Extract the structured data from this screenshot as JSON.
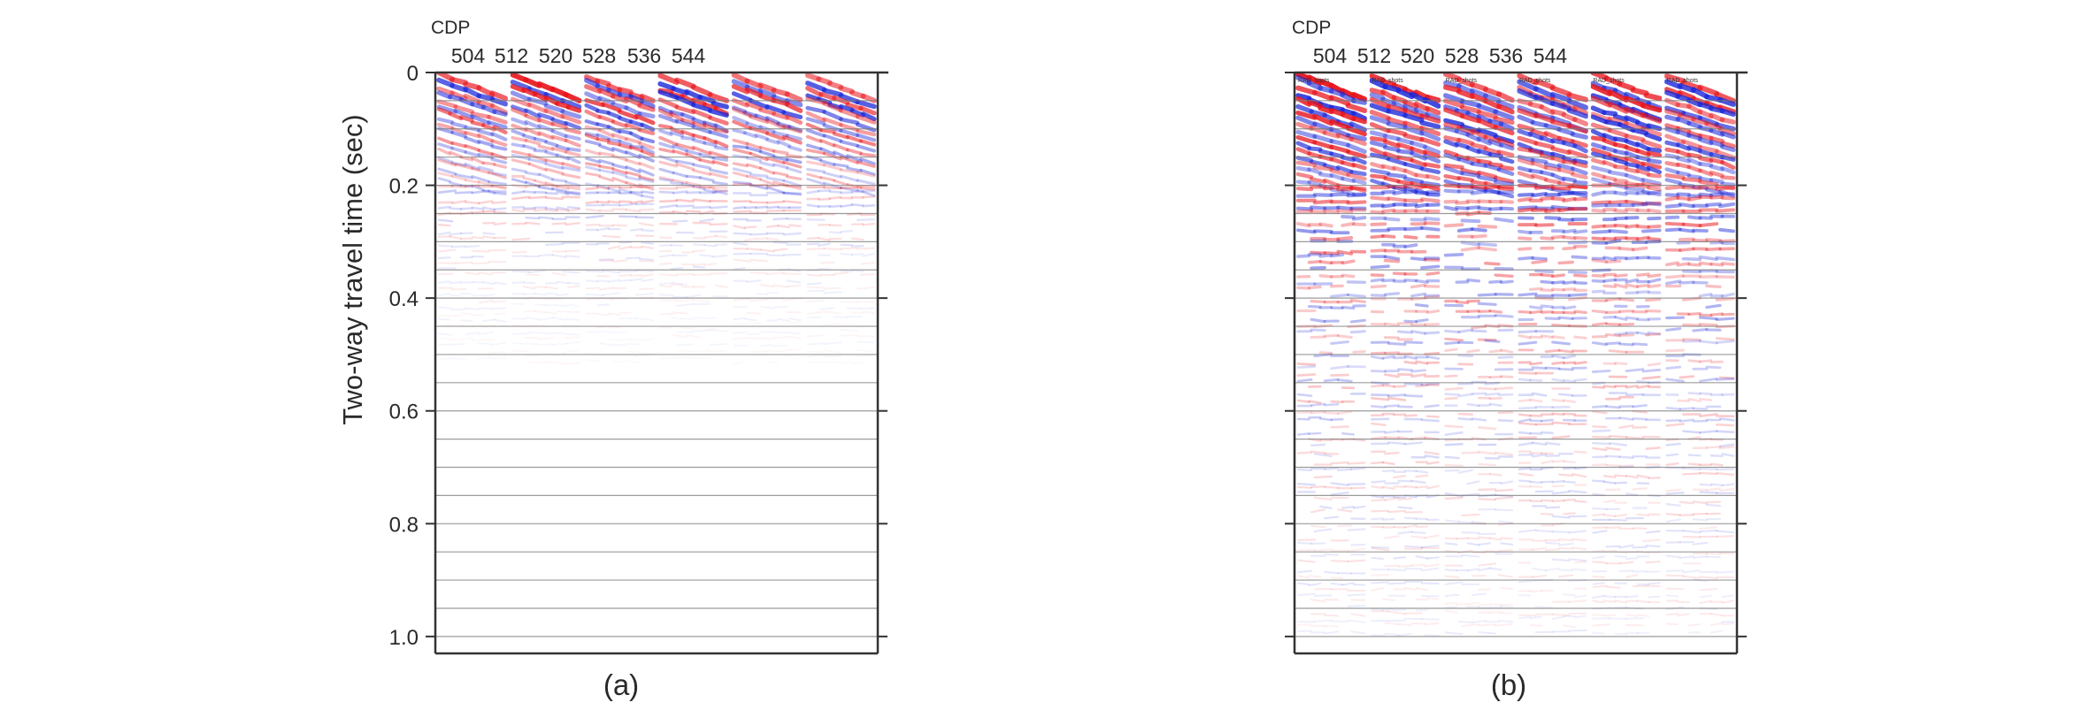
{
  "chart_data": [
    {
      "type": "heatmap",
      "panel_label": "(a)",
      "x_title": "CDP",
      "x_ticks": [
        "504",
        "512",
        "520",
        "528",
        "536",
        "544"
      ],
      "ylabel": "Two-way travel time (sec)",
      "y_ticks": [
        "0",
        "0.2",
        "0.4",
        "0.6",
        "0.8",
        "1.0"
      ],
      "y_tick_values": [
        0,
        0.2,
        0.4,
        0.6,
        0.8,
        1.0
      ],
      "ylim": [
        0,
        1.03
      ],
      "colors": {
        "positive": "#e8141c",
        "negative": "#1a26d8"
      },
      "panel_sublabels": [],
      "energy_decay": 0.16,
      "noise_seed": 11
    },
    {
      "type": "heatmap",
      "panel_label": "(b)",
      "x_title": "CDP",
      "x_ticks": [
        "504",
        "512",
        "520",
        "528",
        "536",
        "544"
      ],
      "ylabel": "",
      "y_ticks": [],
      "y_tick_values": [
        0,
        0.2,
        0.4,
        0.6,
        0.8,
        1.0
      ],
      "ylim": [
        0,
        1.03
      ],
      "colors": {
        "positive": "#e8141c",
        "negative": "#1a26d8"
      },
      "panel_sublabels": [
        "RAD_shots",
        "RAD_shots",
        "RAD_shots",
        "RAD_shots",
        "RAD_shots",
        "RAD_shots"
      ],
      "energy_decay": 0.42,
      "noise_seed": 29
    }
  ]
}
